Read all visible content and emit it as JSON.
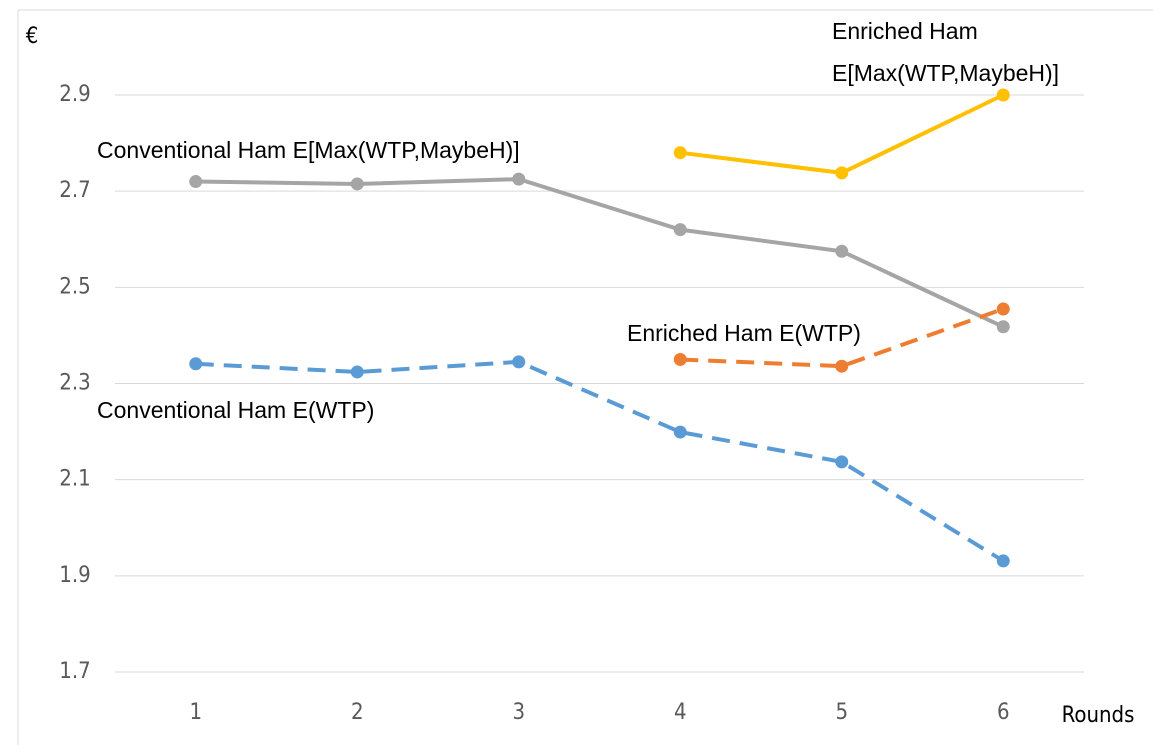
{
  "chart_data": {
    "type": "line",
    "ylabel": "€",
    "xlabel": "Rounds",
    "categories": [
      "1",
      "2",
      "3",
      "4",
      "5",
      "6"
    ],
    "series": [
      {
        "name": "Conventional Ham E[Max(WTP,MaybeH)]",
        "color": "#a5a5a5",
        "dashed": false,
        "values": [
          2.72,
          2.715,
          2.725,
          2.62,
          2.575,
          2.418
        ]
      },
      {
        "name": "Enriched Ham E[Max(WTP,MaybeH)]",
        "color": "#ffc000",
        "dashed": false,
        "values": [
          null,
          null,
          null,
          2.78,
          2.738,
          2.9
        ]
      },
      {
        "name": "Enriched Ham E(WTP)",
        "color": "#ed7d31",
        "dashed": true,
        "values": [
          null,
          null,
          null,
          2.35,
          2.336,
          2.455
        ]
      },
      {
        "name": "Conventional Ham E(WTP)",
        "color": "#5b9bd5",
        "dashed": true,
        "values": [
          2.341,
          2.324,
          2.345,
          2.199,
          2.137,
          1.931
        ]
      }
    ],
    "ylim": [
      1.7,
      2.9
    ],
    "yticks": [
      1.7,
      1.9,
      2.1,
      2.3,
      2.5,
      2.7,
      2.9
    ],
    "grid": true
  }
}
